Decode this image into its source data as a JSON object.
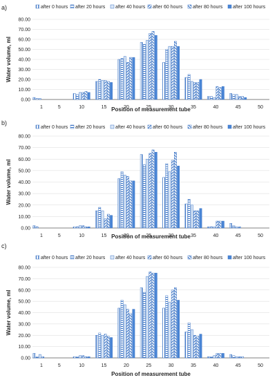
{
  "legend_labels": [
    "after 0 hours",
    "after 20 hours",
    "after 40 hours",
    "after 60 hours",
    "after 80 hours",
    "after 100 hours"
  ],
  "colors": {
    "stroke": "#3a73c4",
    "light": "#dce8f7",
    "mid": "#7aa6dd",
    "dark": "#4a86d6",
    "axis": "#595959",
    "grid": "#d9d9d9",
    "text": "#262626"
  },
  "chart_data": [
    {
      "panel_label": "a)",
      "type": "bar",
      "title": "",
      "xlabel": "Position of measurement tube",
      "ylabel": "Water volume, ml",
      "ylim": [
        0,
        80
      ],
      "yticks": [
        "0.00",
        "10.00",
        "20.00",
        "30.00",
        "40.00",
        "50.00",
        "60.00",
        "70.00",
        "80.00"
      ],
      "xticks": [
        "1",
        "5",
        "10",
        "15",
        "20",
        "25",
        "30",
        "35",
        "40",
        "45",
        "50"
      ],
      "grid": true,
      "legend": "top",
      "series": [
        {
          "name": "after 0 hours",
          "x": [
            1,
            10,
            15,
            20,
            25,
            30,
            35,
            40,
            45
          ],
          "values": [
            2,
            6,
            18,
            40,
            57,
            37,
            22,
            3,
            6
          ]
        },
        {
          "name": "after 20 hours",
          "x": [
            1,
            10,
            15,
            20,
            25,
            30,
            35,
            40,
            45
          ],
          "values": [
            1,
            5,
            20,
            41,
            55,
            50,
            25,
            3,
            5
          ]
        },
        {
          "name": "after 40 hours",
          "x": [
            1,
            10,
            15,
            20,
            25,
            30,
            35,
            40,
            45
          ],
          "values": [
            1,
            7,
            19,
            43,
            59,
            53,
            18,
            2,
            5
          ]
        },
        {
          "name": "after 60 hours",
          "x": [
            1,
            10,
            15,
            20,
            25,
            30,
            35,
            40,
            45
          ],
          "values": [
            0,
            7,
            19,
            37,
            66,
            53,
            17,
            13,
            3
          ]
        },
        {
          "name": "after 80 hours",
          "x": [
            1,
            10,
            15,
            20,
            25,
            30,
            35,
            40,
            45
          ],
          "values": [
            0,
            8,
            18,
            42,
            68,
            58,
            17,
            12,
            3
          ]
        },
        {
          "name": "after 100 hours",
          "x": [
            1,
            10,
            15,
            20,
            25,
            30,
            35,
            40,
            45
          ],
          "values": [
            0,
            7,
            17,
            42,
            64,
            53,
            20,
            13,
            2
          ]
        }
      ]
    },
    {
      "panel_label": "b)",
      "type": "bar",
      "title": "",
      "xlabel": "Position of measurement tube",
      "ylabel": "Water volume, ml",
      "ylim": [
        0,
        80
      ],
      "yticks": [
        "0.00",
        "10.00",
        "20.00",
        "30.00",
        "40.00",
        "50.00",
        "60.00",
        "70.00",
        "80.00"
      ],
      "xticks": [
        "1",
        "5",
        "10",
        "15",
        "20",
        "25",
        "30",
        "35",
        "40",
        "45",
        "50"
      ],
      "grid": true,
      "legend": "top",
      "series": [
        {
          "name": "after 0 hours",
          "x": [
            1,
            10,
            15,
            20,
            25,
            30,
            35,
            40,
            45
          ],
          "values": [
            2,
            1,
            15,
            43,
            64,
            44,
            21,
            1,
            4
          ]
        },
        {
          "name": "after 20 hours",
          "x": [
            1,
            10,
            15,
            20,
            25,
            30,
            35,
            40,
            45
          ],
          "values": [
            1,
            1,
            18,
            49,
            55,
            56,
            25,
            1,
            2
          ]
        },
        {
          "name": "after 40 hours",
          "x": [
            1,
            10,
            15,
            20,
            25,
            30,
            35,
            40,
            45
          ],
          "values": [
            0,
            2,
            15,
            46,
            60,
            49,
            20,
            1,
            1
          ]
        },
        {
          "name": "after 60 hours",
          "x": [
            1,
            10,
            15,
            20,
            25,
            30,
            35,
            40,
            45
          ],
          "values": [
            0,
            2,
            8,
            45,
            65,
            59,
            15,
            6,
            1
          ]
        },
        {
          "name": "after 80 hours",
          "x": [
            1,
            10,
            15,
            20,
            25,
            30,
            35,
            40,
            45
          ],
          "values": [
            0,
            1,
            12,
            41,
            68,
            66,
            15,
            6,
            0
          ]
        },
        {
          "name": "after 100 hours",
          "x": [
            1,
            10,
            15,
            20,
            25,
            30,
            35,
            40,
            45
          ],
          "values": [
            0,
            1,
            11,
            41,
            66,
            54,
            17,
            6,
            0
          ]
        }
      ]
    },
    {
      "panel_label": "c)",
      "type": "bar",
      "title": "",
      "xlabel": "Position of measurement tube",
      "ylabel": "Water volume, ml",
      "ylim": [
        0,
        80
      ],
      "yticks": [
        "0.00",
        "10.00",
        "20.00",
        "30.00",
        "40.00",
        "50.00",
        "60.00",
        "70.00",
        "80.00"
      ],
      "xticks": [
        "1",
        "5",
        "10",
        "15",
        "20",
        "25",
        "30",
        "35",
        "40",
        "45",
        "50"
      ],
      "grid": true,
      "legend": "top",
      "series": [
        {
          "name": "after 0 hours",
          "x": [
            1,
            10,
            15,
            20,
            25,
            30,
            35,
            40,
            45
          ],
          "values": [
            4,
            1,
            20,
            44,
            62,
            44,
            23,
            1,
            3
          ]
        },
        {
          "name": "after 20 hours",
          "x": [
            1,
            10,
            15,
            20,
            25,
            30,
            35,
            40,
            45
          ],
          "values": [
            1,
            1,
            22,
            51,
            58,
            55,
            31,
            1,
            2
          ]
        },
        {
          "name": "after 40 hours",
          "x": [
            1,
            10,
            15,
            20,
            25,
            30,
            35,
            40,
            45
          ],
          "values": [
            3,
            2,
            20,
            47,
            72,
            49,
            25,
            2,
            1
          ]
        },
        {
          "name": "after 60 hours",
          "x": [
            1,
            10,
            15,
            20,
            25,
            30,
            35,
            40,
            45
          ],
          "values": [
            1,
            2,
            21,
            43,
            76,
            60,
            20,
            4,
            1
          ]
        },
        {
          "name": "after 80 hours",
          "x": [
            1,
            10,
            15,
            20,
            25,
            30,
            35,
            40,
            45
          ],
          "values": [
            0,
            1,
            19,
            39,
            75,
            62,
            19,
            4,
            1
          ]
        },
        {
          "name": "after 100 hours",
          "x": [
            1,
            10,
            15,
            20,
            25,
            30,
            35,
            40,
            45
          ],
          "values": [
            0,
            1,
            18,
            43,
            75,
            51,
            21,
            4,
            0
          ]
        }
      ]
    }
  ]
}
